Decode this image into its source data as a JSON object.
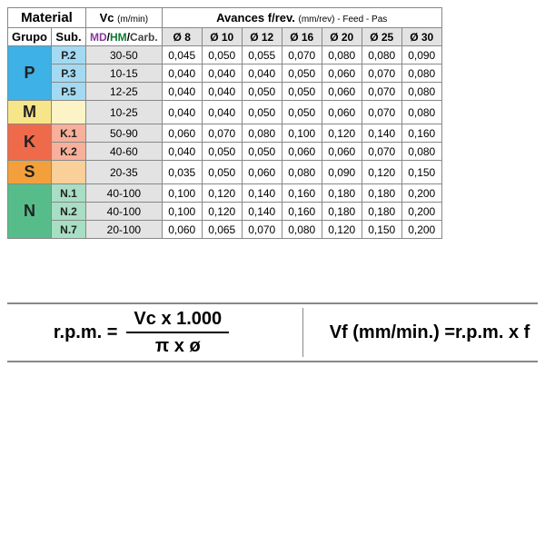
{
  "headers": {
    "material": "Material",
    "grupo": "Grupo",
    "sub": "Sub.",
    "vc": "Vc",
    "vc_unit": "(m/min)",
    "md": "MD",
    "hm": "HM",
    "carb": "Carb.",
    "advances": "Avances f/rev.",
    "advances_sub": "(mm/rev) - Feed - Pas",
    "diameters": [
      "Ø 8",
      "Ø 10",
      "Ø 12",
      "Ø 16",
      "Ø 20",
      "Ø 25",
      "Ø 30"
    ]
  },
  "group_colors": {
    "P": "#3eb1e6",
    "M": "#f7e58a",
    "K": "#ef6a4b",
    "S": "#f3a03c",
    "N": "#56bd8a"
  },
  "sub_colors": {
    "P": "#a3daf2",
    "M": "#fcf4c6",
    "K": "#f7b09b",
    "S": "#f9cf9a",
    "N": "#a8dec3"
  },
  "rows": [
    {
      "grp": "P",
      "sub": "P.2",
      "vc": "30-50",
      "feeds": [
        "0,045",
        "0,050",
        "0,055",
        "0,070",
        "0,080",
        "0,080",
        "0,090"
      ]
    },
    {
      "grp": "P",
      "sub": "P.3",
      "vc": "10-15",
      "feeds": [
        "0,040",
        "0,040",
        "0,040",
        "0,050",
        "0,060",
        "0,070",
        "0,080"
      ]
    },
    {
      "grp": "P",
      "sub": "P.5",
      "vc": "12-25",
      "feeds": [
        "0,040",
        "0,040",
        "0,050",
        "0,050",
        "0,060",
        "0,070",
        "0,080"
      ]
    },
    {
      "grp": "M",
      "sub": "",
      "vc": "10-25",
      "feeds": [
        "0,040",
        "0,040",
        "0,050",
        "0,050",
        "0,060",
        "0,070",
        "0,080"
      ]
    },
    {
      "grp": "K",
      "sub": "K.1",
      "vc": "50-90",
      "feeds": [
        "0,060",
        "0,070",
        "0,080",
        "0,100",
        "0,120",
        "0,140",
        "0,160"
      ]
    },
    {
      "grp": "K",
      "sub": "K.2",
      "vc": "40-60",
      "feeds": [
        "0,040",
        "0,050",
        "0,050",
        "0,060",
        "0,060",
        "0,070",
        "0,080"
      ]
    },
    {
      "grp": "S",
      "sub": "",
      "vc": "20-35",
      "feeds": [
        "0,035",
        "0,050",
        "0,060",
        "0,080",
        "0,090",
        "0,120",
        "0,150"
      ]
    },
    {
      "grp": "N",
      "sub": "N.1",
      "vc": "40-100",
      "feeds": [
        "0,100",
        "0,120",
        "0,140",
        "0,160",
        "0,180",
        "0,180",
        "0,200"
      ]
    },
    {
      "grp": "N",
      "sub": "N.2",
      "vc": "40-100",
      "feeds": [
        "0,100",
        "0,120",
        "0,140",
        "0,160",
        "0,180",
        "0,180",
        "0,200"
      ]
    },
    {
      "grp": "N",
      "sub": "N.7",
      "vc": "20-100",
      "feeds": [
        "0,060",
        "0,065",
        "0,070",
        "0,080",
        "0,120",
        "0,150",
        "0,200"
      ]
    }
  ],
  "groups": [
    {
      "label": "P",
      "span": 3
    },
    {
      "label": "M",
      "span": 1
    },
    {
      "label": "K",
      "span": 2
    },
    {
      "label": "S",
      "span": 1
    },
    {
      "label": "N",
      "span": 3
    }
  ],
  "formula": {
    "rpm_label": "r.p.m. =",
    "num": "Vc x 1.000",
    "den": "π x ø",
    "vf": "Vf (mm/min.) =r.p.m. x f"
  }
}
